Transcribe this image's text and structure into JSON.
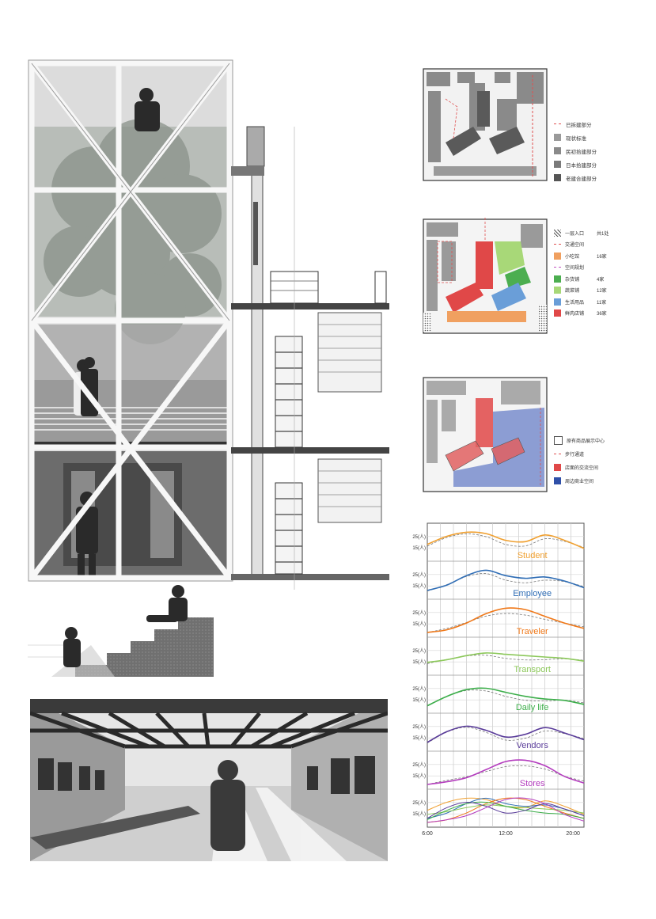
{
  "colors": {
    "student": "#f0a030",
    "employee": "#2f6db5",
    "traveler": "#f07818",
    "transport": "#8cc85a",
    "daily_life": "#3cae4a",
    "vendors": "#5a3c9a",
    "stores": "#b43cbe",
    "pink_dash": "#e05050",
    "red": "#e04848",
    "orange": "#f0a060",
    "blue": "#6a9ed8",
    "green_dark": "#4cae50",
    "green_light": "#a8d878"
  },
  "legend1": {
    "items": [
      {
        "label": "已拆建部分",
        "swatch": "dash"
      },
      {
        "label": "现状标准",
        "swatch": "#9a9a9a"
      },
      {
        "label": "民初拾建部分",
        "swatch": "#8a8a8a"
      },
      {
        "label": "日本拾建部分",
        "swatch": "#7a7a7a"
      },
      {
        "label": "老建合建部分",
        "swatch": "#555555"
      }
    ]
  },
  "legend2": {
    "items": [
      {
        "label": "一层入口",
        "value": "共1处",
        "swatch": "hatch"
      },
      {
        "label": "交通空间",
        "value": "",
        "swatch": "dash"
      },
      {
        "label": "小吃馆",
        "value": "16家",
        "swatch": "#f0a060"
      },
      {
        "label": "空间规划",
        "value": "",
        "swatch": "dash"
      },
      {
        "label": "杂货铺",
        "value": "4家",
        "swatch": "#4cae50"
      },
      {
        "label": "蔬菜铺",
        "value": "12家",
        "swatch": "#a8d878"
      },
      {
        "label": "生活用品",
        "value": "11家",
        "swatch": "#6a9ed8"
      },
      {
        "label": "鲜肉店铺",
        "value": "36家",
        "swatch": "#e04848"
      }
    ]
  },
  "legend3": {
    "items": [
      {
        "label": "原有商品展示中心",
        "swatch": "#bbbbbb"
      },
      {
        "label": "步行通道",
        "swatch": "dash"
      },
      {
        "label": "店面的交流空间",
        "swatch": "#e04848"
      },
      {
        "label": "周边商业空间",
        "swatch": "#2f50a8"
      }
    ]
  },
  "chart_data": {
    "type": "line",
    "x_ticks": [
      "6:00",
      "12:00",
      "20:00"
    ],
    "y_tick_labels": [
      "25",
      "15"
    ],
    "y_unit": "(人)",
    "series": [
      {
        "name": "Student",
        "color": "#f0a030",
        "values": [
          0.45,
          0.75,
          0.9,
          0.85,
          0.6,
          0.55,
          0.8,
          0.6,
          0.3
        ]
      },
      {
        "name": "Employee",
        "color": "#2f6db5",
        "values": [
          0.15,
          0.35,
          0.7,
          0.9,
          0.7,
          0.6,
          0.65,
          0.5,
          0.25
        ]
      },
      {
        "name": "Traveler",
        "color": "#f07818",
        "values": [
          0.0,
          0.1,
          0.35,
          0.7,
          0.9,
          0.85,
          0.6,
          0.35,
          0.15
        ]
      },
      {
        "name": "Transport",
        "color": "#8cc85a",
        "values": [
          0.3,
          0.4,
          0.55,
          0.65,
          0.6,
          0.55,
          0.5,
          0.45,
          0.35
        ]
      },
      {
        "name": "Daily life",
        "color": "#3cae4a",
        "values": [
          0.1,
          0.45,
          0.7,
          0.75,
          0.6,
          0.45,
          0.35,
          0.3,
          0.15
        ]
      },
      {
        "name": "Vendors",
        "color": "#5a3c9a",
        "values": [
          0.15,
          0.55,
          0.75,
          0.6,
          0.35,
          0.45,
          0.7,
          0.5,
          0.25
        ]
      },
      {
        "name": "Stores",
        "color": "#b43cbe",
        "values": [
          0.0,
          0.1,
          0.25,
          0.55,
          0.85,
          0.9,
          0.7,
          0.3,
          0.05
        ]
      }
    ]
  }
}
